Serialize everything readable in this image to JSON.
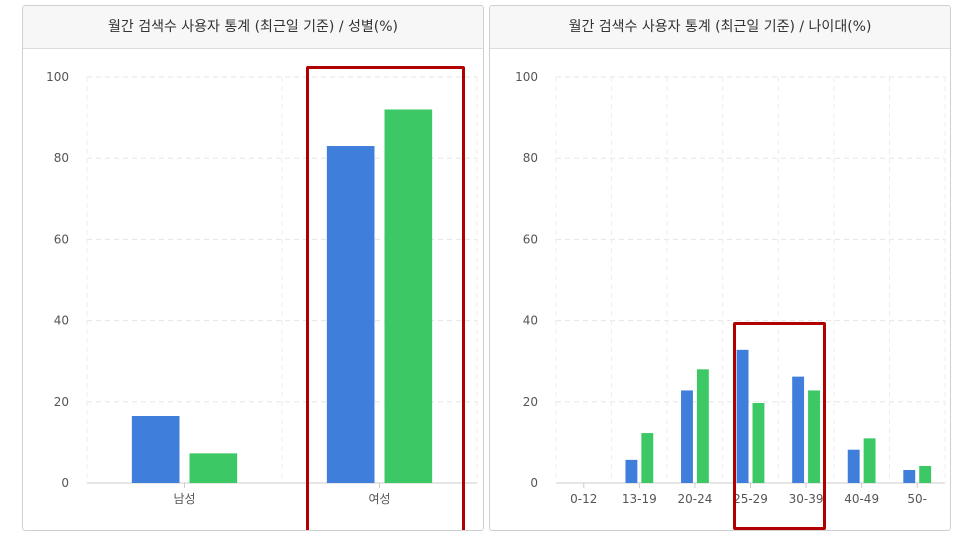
{
  "chart_data": [
    {
      "type": "bar",
      "title": "월간 검색수 사용자 통계 (최근일 기준) / 성별(%)",
      "categories": [
        "남성",
        "여성"
      ],
      "series": [
        {
          "values": [
            16.5,
            83
          ],
          "color": "#3f7fdb"
        },
        {
          "values": [
            7.3,
            92
          ],
          "color": "#3cc864"
        }
      ],
      "ylim": [
        0,
        100
      ],
      "yticks": [
        0,
        20,
        40,
        60,
        80,
        100
      ],
      "grid": true,
      "highlighted_categories": [
        "여성"
      ]
    },
    {
      "type": "bar",
      "title": "월간 검색수 사용자 통계 (최근일 기준) / 나이대(%)",
      "categories": [
        "0-12",
        "13-19",
        "20-24",
        "25-29",
        "30-39",
        "40-49",
        "50-"
      ],
      "series": [
        {
          "values": [
            0,
            5.7,
            22.8,
            32.8,
            26.2,
            8.2,
            3.2
          ],
          "color": "#3f7fdb"
        },
        {
          "values": [
            0,
            12.3,
            28.0,
            19.7,
            22.8,
            11.0,
            4.2
          ],
          "color": "#3cc864"
        }
      ],
      "ylim": [
        0,
        100
      ],
      "yticks": [
        0,
        20,
        40,
        60,
        80,
        100
      ],
      "grid": true,
      "highlighted_categories": [
        "25-29",
        "30-39"
      ]
    }
  ]
}
